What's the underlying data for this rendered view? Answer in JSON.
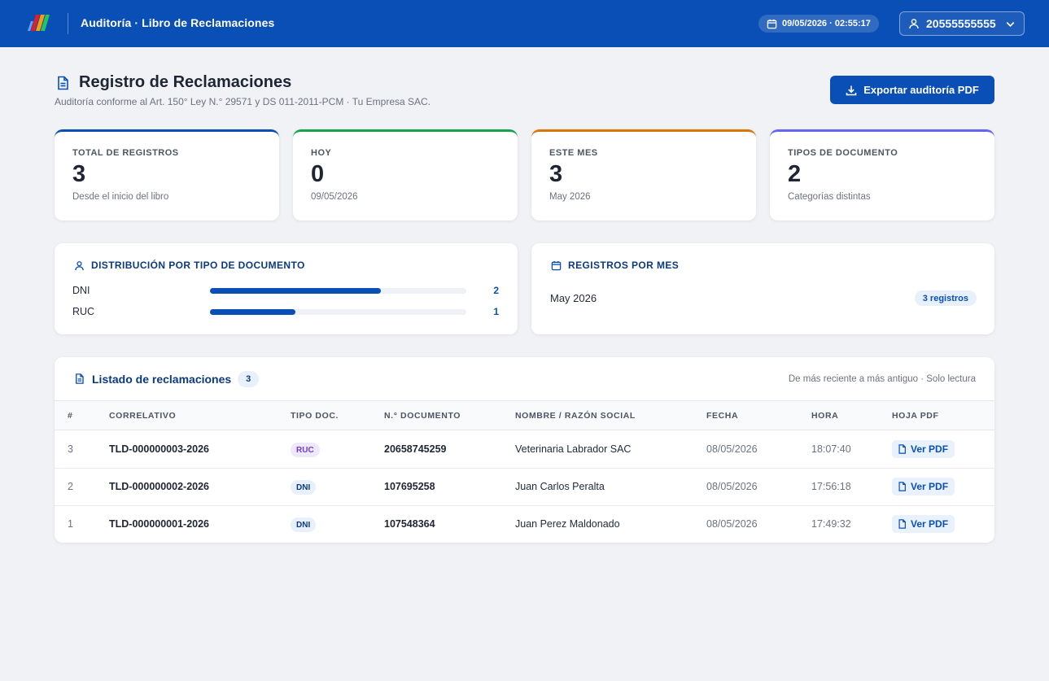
{
  "header": {
    "title": "Auditoría · Libro de Reclamaciones",
    "datetime": "09/05/2026 · 02:55:17",
    "user": "20555555555"
  },
  "page": {
    "title": "Registro de Reclamaciones",
    "subtitle": "Auditoría conforme al Art. 150° Ley N.° 29571 y DS 011-2011-PCM · Tu Empresa SAC.",
    "export_label": "Exportar auditoría PDF"
  },
  "stats": [
    {
      "label": "TOTAL DE REGISTROS",
      "value": "3",
      "sub": "Desde el inicio del libro",
      "color": "#0a4fb5"
    },
    {
      "label": "HOY",
      "value": "0",
      "sub": "09/05/2026",
      "color": "#16a34a"
    },
    {
      "label": "ESTE MES",
      "value": "3",
      "sub": "May 2026",
      "color": "#d97706"
    },
    {
      "label": "TIPOS DE DOCUMENTO",
      "value": "2",
      "sub": "Categorías distintas",
      "color": "#6366f1"
    }
  ],
  "distribution": {
    "title": "DISTRIBUCIÓN POR TIPO DE DOCUMENTO",
    "items": [
      {
        "name": "DNI",
        "count": "2",
        "fraction": 0.667
      },
      {
        "name": "RUC",
        "count": "1",
        "fraction": 0.333
      }
    ]
  },
  "monthly": {
    "title": "REGISTROS POR MES",
    "items": [
      {
        "month": "May 2026",
        "badge": "3 registros"
      }
    ]
  },
  "list": {
    "title": "Listado de reclamaciones",
    "count": "3",
    "note": "De más reciente a más antiguo · Solo lectura",
    "columns": [
      "#",
      "CORRELATIVO",
      "TIPO DOC.",
      "N.° DOCUMENTO",
      "NOMBRE / RAZÓN SOCIAL",
      "FECHA",
      "HORA",
      "HOJA PDF"
    ],
    "pdf_label": "Ver PDF",
    "rows": [
      {
        "num": "3",
        "correlativo": "TLD-000000003-2026",
        "tipo": "RUC",
        "documento": "20658745259",
        "nombre": "Veterinaria Labrador SAC",
        "fecha": "08/05/2026",
        "hora": "18:07:40"
      },
      {
        "num": "2",
        "correlativo": "TLD-000000002-2026",
        "tipo": "DNI",
        "documento": "107695258",
        "nombre": "Juan Carlos Peralta",
        "fecha": "08/05/2026",
        "hora": "17:56:18"
      },
      {
        "num": "1",
        "correlativo": "TLD-000000001-2026",
        "tipo": "DNI",
        "documento": "107548364",
        "nombre": "Juan Perez Maldonado",
        "fecha": "08/05/2026",
        "hora": "17:49:32"
      }
    ]
  }
}
